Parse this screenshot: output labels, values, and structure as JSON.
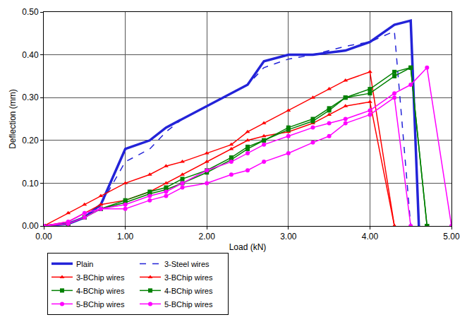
{
  "chart_data": {
    "type": "line",
    "x_label": "Load (kN)",
    "y_label": "Deflection (mm)",
    "xlim": [
      0,
      5
    ],
    "ylim": [
      0,
      0.5
    ],
    "xticks": [
      {
        "value": 0,
        "label": "0.00"
      },
      {
        "value": 1,
        "label": "1.00"
      },
      {
        "value": 2,
        "label": "2.00"
      },
      {
        "value": 3,
        "label": "3.00"
      },
      {
        "value": 4,
        "label": "4.00"
      },
      {
        "value": 5,
        "label": "5.00"
      }
    ],
    "yticks": [
      {
        "value": 0,
        "label": "0.00"
      },
      {
        "value": 0.1,
        "label": "0.10"
      },
      {
        "value": 0.2,
        "label": "0.20"
      },
      {
        "value": 0.3,
        "label": "0.30"
      },
      {
        "value": 0.4,
        "label": "0.40"
      },
      {
        "value": 0.5,
        "label": "0.50"
      }
    ],
    "grid": true,
    "legend": "bottom",
    "series": [
      {
        "name": "Plain",
        "color": "#2323d8",
        "line_style": "solid",
        "marker": "none",
        "x": [
          0,
          0.3,
          0.5,
          0.7,
          1.0,
          1.3,
          1.5,
          1.7,
          2.0,
          2.3,
          2.5,
          2.7,
          3.0,
          3.3,
          3.5,
          3.7,
          4.0,
          4.3,
          4.5,
          4.6
        ],
        "values": [
          0,
          0.005,
          0.02,
          0.05,
          0.18,
          0.2,
          0.23,
          0.25,
          0.28,
          0.31,
          0.33,
          0.385,
          0.4,
          0.4,
          0.405,
          0.41,
          0.43,
          0.47,
          0.48,
          0
        ]
      },
      {
        "name": "3-Steel wires",
        "color": "#2323d8",
        "line_style": "dash",
        "marker": "none",
        "x": [
          0,
          0.3,
          0.5,
          0.7,
          1.0,
          1.3,
          1.5,
          1.7,
          2.0,
          2.3,
          2.5,
          2.7,
          3.0,
          3.3,
          3.5,
          3.7,
          4.0,
          4.3,
          4.5
        ],
        "values": [
          0,
          0.005,
          0.02,
          0.05,
          0.15,
          0.18,
          0.22,
          0.25,
          0.28,
          0.31,
          0.33,
          0.37,
          0.39,
          0.4,
          0.41,
          0.42,
          0.43,
          0.455,
          0
        ]
      },
      {
        "name": "3-BChip wires",
        "color": "#ff0000",
        "line_style": "solid",
        "marker": "triangle",
        "x": [
          0,
          0.3,
          0.5,
          0.7,
          1.0,
          1.3,
          1.5,
          1.7,
          2.0,
          2.3,
          2.5,
          2.7,
          3.0,
          3.3,
          3.5,
          3.7,
          4.0,
          4.3
        ],
        "values": [
          0,
          0.03,
          0.05,
          0.07,
          0.1,
          0.12,
          0.14,
          0.15,
          0.17,
          0.19,
          0.22,
          0.24,
          0.27,
          0.3,
          0.32,
          0.34,
          0.36,
          0
        ]
      },
      {
        "name": "3-BChip wires",
        "color": "#ff0000",
        "line_style": "solid",
        "marker": "triangle",
        "x": [
          0,
          0.3,
          0.5,
          0.7,
          1.0,
          1.3,
          1.5,
          1.7,
          2.0,
          2.3,
          2.5,
          2.7,
          3.0,
          3.3,
          3.5,
          3.7,
          4.0,
          4.3
        ],
        "values": [
          0,
          0.01,
          0.03,
          0.05,
          0.06,
          0.08,
          0.1,
          0.12,
          0.15,
          0.18,
          0.2,
          0.21,
          0.22,
          0.24,
          0.26,
          0.28,
          0.29,
          0
        ]
      },
      {
        "name": "4-BChip wires",
        "color": "#008000",
        "line_style": "solid",
        "marker": "square",
        "x": [
          0,
          0.3,
          0.5,
          0.7,
          1.0,
          1.3,
          1.5,
          1.7,
          2.0,
          2.3,
          2.5,
          2.7,
          3.0,
          3.3,
          3.5,
          3.7,
          4.0,
          4.3,
          4.5,
          4.7
        ],
        "values": [
          0,
          0.005,
          0.02,
          0.04,
          0.06,
          0.08,
          0.09,
          0.11,
          0.13,
          0.16,
          0.185,
          0.2,
          0.23,
          0.25,
          0.275,
          0.3,
          0.32,
          0.36,
          0.37,
          0
        ]
      },
      {
        "name": "4-BChip wires",
        "color": "#008000",
        "line_style": "solid",
        "marker": "square",
        "x": [
          0,
          0.3,
          0.5,
          0.7,
          1.0,
          1.3,
          1.5,
          1.7,
          2.0,
          2.3,
          2.5,
          2.7,
          3.0,
          3.3,
          3.5,
          3.7,
          4.0,
          4.3,
          4.5,
          4.7
        ],
        "values": [
          0,
          0.005,
          0.02,
          0.04,
          0.055,
          0.075,
          0.085,
          0.1,
          0.125,
          0.155,
          0.18,
          0.2,
          0.225,
          0.245,
          0.27,
          0.3,
          0.31,
          0.35,
          0.37,
          0
        ]
      },
      {
        "name": "5-BChip wires",
        "color": "#ff00ff",
        "line_style": "solid",
        "marker": "circle",
        "x": [
          0,
          0.3,
          0.5,
          0.7,
          1.0,
          1.3,
          1.5,
          1.7,
          2.0,
          2.3,
          2.5,
          2.7,
          3.0,
          3.3,
          3.5,
          3.7,
          4.0,
          4.3,
          4.5,
          4.7,
          5.0
        ],
        "values": [
          0,
          0.01,
          0.03,
          0.04,
          0.05,
          0.07,
          0.08,
          0.1,
          0.13,
          0.15,
          0.17,
          0.19,
          0.21,
          0.23,
          0.24,
          0.25,
          0.27,
          0.31,
          0.33,
          0.37,
          0
        ]
      },
      {
        "name": "5-BChip wires",
        "color": "#ff00ff",
        "line_style": "solid",
        "marker": "circle",
        "x": [
          0,
          0.3,
          0.5,
          0.7,
          1.0,
          1.3,
          1.5,
          1.7,
          2.0,
          2.3,
          2.5,
          2.7,
          3.0,
          3.3,
          3.5,
          3.7,
          4.0,
          4.3,
          4.5
        ],
        "values": [
          0,
          0.005,
          0.02,
          0.04,
          0.04,
          0.06,
          0.07,
          0.09,
          0.1,
          0.12,
          0.13,
          0.15,
          0.17,
          0.195,
          0.21,
          0.24,
          0.26,
          0.3,
          0
        ]
      }
    ]
  }
}
